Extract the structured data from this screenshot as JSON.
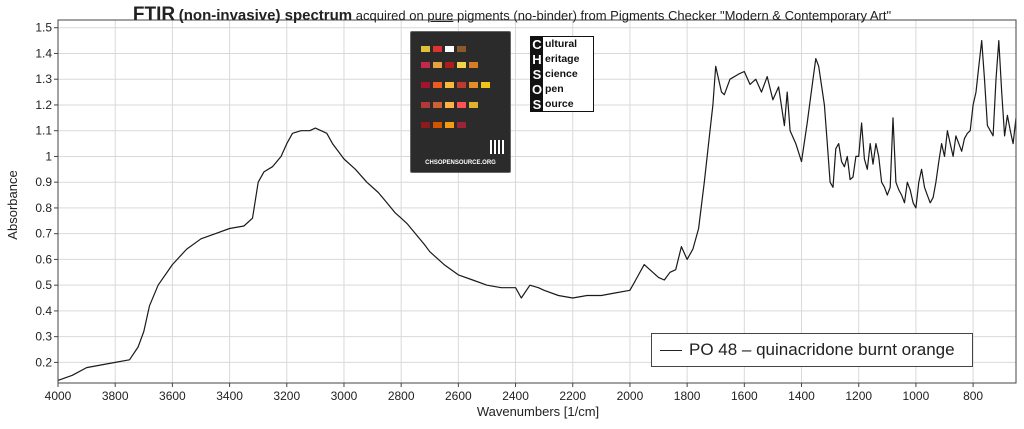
{
  "title": {
    "bold": "FTIR",
    "mid": "(non-invasive) spectrum",
    "rest_1": "acquired on",
    "underlined": "pure",
    "rest_2": "pigments (no-binder) from Pigments Checker \"Modern & Contemporary Art\""
  },
  "legend": {
    "label": "PO 48 – quinacridone burnt orange"
  },
  "logo": {
    "lines": [
      {
        "letter": "C",
        "word": "ultural"
      },
      {
        "letter": "H",
        "word": "eritage"
      },
      {
        "letter": "S",
        "word": "cience"
      },
      {
        "letter": "O",
        "word": "pen"
      },
      {
        "letter": "S",
        "word": "ource"
      }
    ]
  },
  "card": {
    "url": "CHSOPENSOURCE.ORG"
  },
  "colors": {
    "line": "#1a1a1a",
    "grid": "#d9d9d9",
    "frame": "#444444"
  },
  "chart_data": {
    "type": "line",
    "title": "FTIR (non-invasive) spectrum acquired on pure pigments (no-binder) from Pigments Checker \"Modern & Contemporary Art\"",
    "xlabel": "Wavenumbers [1/cm]",
    "ylabel": "Absorbance",
    "xlim": [
      4000,
      650
    ],
    "ylim": [
      0.12,
      1.53
    ],
    "x_reversed": true,
    "grid": true,
    "legend_position": "bottom-right",
    "x_ticks": [
      4000,
      3800,
      3600,
      3400,
      3200,
      3000,
      2800,
      2600,
      2400,
      2200,
      2000,
      1800,
      1600,
      1400,
      1200,
      1000,
      800
    ],
    "y_ticks": [
      0.2,
      0.3,
      0.4,
      0.5,
      0.6,
      0.7,
      0.8,
      0.9,
      1,
      1.1,
      1.2,
      1.3,
      1.4,
      1.5
    ],
    "series": [
      {
        "name": "PO 48 – quinacridone burnt orange",
        "x": [
          4000,
          3950,
          3900,
          3850,
          3800,
          3750,
          3720,
          3700,
          3680,
          3650,
          3600,
          3550,
          3500,
          3450,
          3400,
          3350,
          3320,
          3300,
          3280,
          3250,
          3220,
          3200,
          3180,
          3150,
          3120,
          3100,
          3080,
          3060,
          3040,
          3000,
          2960,
          2920,
          2880,
          2850,
          2820,
          2800,
          2780,
          2750,
          2720,
          2700,
          2650,
          2600,
          2550,
          2500,
          2450,
          2400,
          2380,
          2350,
          2320,
          2300,
          2250,
          2200,
          2150,
          2100,
          2050,
          2000,
          1980,
          1950,
          1920,
          1900,
          1880,
          1860,
          1840,
          1820,
          1800,
          1780,
          1760,
          1740,
          1720,
          1710,
          1700,
          1690,
          1680,
          1670,
          1650,
          1620,
          1600,
          1580,
          1560,
          1540,
          1520,
          1500,
          1480,
          1460,
          1450,
          1440,
          1420,
          1400,
          1380,
          1360,
          1350,
          1340,
          1320,
          1310,
          1300,
          1290,
          1280,
          1270,
          1260,
          1250,
          1240,
          1230,
          1220,
          1210,
          1200,
          1190,
          1180,
          1170,
          1160,
          1150,
          1140,
          1130,
          1120,
          1110,
          1100,
          1090,
          1080,
          1070,
          1060,
          1050,
          1040,
          1030,
          1020,
          1010,
          1000,
          990,
          980,
          970,
          960,
          950,
          940,
          930,
          920,
          910,
          900,
          890,
          880,
          870,
          860,
          850,
          840,
          830,
          820,
          810,
          800,
          790,
          780,
          770,
          760,
          750,
          740,
          730,
          720,
          710,
          700,
          690,
          680,
          670,
          660,
          650
        ],
        "y": [
          0.13,
          0.15,
          0.18,
          0.19,
          0.2,
          0.21,
          0.26,
          0.32,
          0.42,
          0.5,
          0.58,
          0.64,
          0.68,
          0.7,
          0.72,
          0.73,
          0.76,
          0.9,
          0.94,
          0.96,
          1.0,
          1.05,
          1.09,
          1.1,
          1.1,
          1.11,
          1.1,
          1.09,
          1.05,
          0.99,
          0.95,
          0.9,
          0.86,
          0.82,
          0.78,
          0.76,
          0.74,
          0.7,
          0.66,
          0.63,
          0.58,
          0.54,
          0.52,
          0.5,
          0.49,
          0.49,
          0.45,
          0.5,
          0.49,
          0.48,
          0.46,
          0.45,
          0.46,
          0.46,
          0.47,
          0.48,
          0.52,
          0.58,
          0.55,
          0.53,
          0.52,
          0.55,
          0.56,
          0.65,
          0.6,
          0.64,
          0.72,
          0.9,
          1.1,
          1.2,
          1.35,
          1.3,
          1.25,
          1.24,
          1.3,
          1.32,
          1.33,
          1.28,
          1.3,
          1.25,
          1.31,
          1.22,
          1.27,
          1.12,
          1.25,
          1.1,
          1.05,
          0.98,
          1.13,
          1.3,
          1.38,
          1.35,
          1.2,
          1.05,
          0.9,
          0.88,
          1.03,
          1.05,
          0.98,
          0.96,
          1.0,
          0.91,
          0.92,
          1.0,
          1.0,
          1.13,
          0.99,
          0.95,
          1.05,
          0.97,
          1.05,
          1.0,
          0.9,
          0.88,
          0.85,
          0.88,
          1.15,
          0.9,
          0.87,
          0.85,
          0.82,
          0.9,
          0.87,
          0.82,
          0.8,
          0.9,
          0.95,
          0.88,
          0.85,
          0.82,
          0.84,
          0.9,
          0.98,
          1.05,
          1.0,
          1.1,
          1.05,
          1.0,
          1.08,
          1.05,
          1.02,
          1.07,
          1.09,
          1.1,
          1.2,
          1.25,
          1.35,
          1.45,
          1.3,
          1.12,
          1.1,
          1.08,
          1.3,
          1.45,
          1.25,
          1.08,
          1.16,
          1.1,
          1.05,
          1.15
        ],
        "color": "#1a1a1a"
      }
    ]
  }
}
